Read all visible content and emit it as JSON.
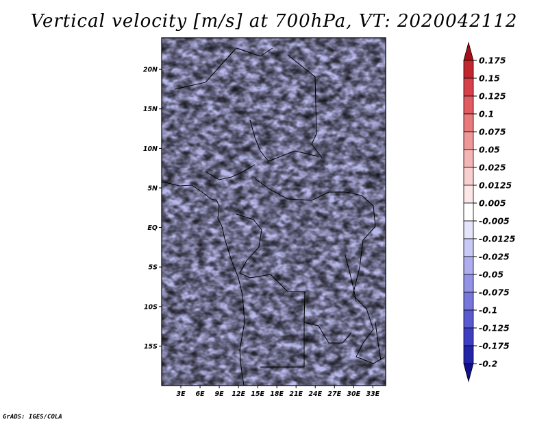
{
  "title": "Vertical velocity [m/s] at 700hPa, VT: 2020042112",
  "credit": "GrADS: IGES/COLA",
  "map": {
    "variable": "Vertical velocity",
    "units": "m/s",
    "level": "700hPa",
    "valid_time": "2020042112",
    "lon_range": [
      0,
      35
    ],
    "lat_range": [
      -20,
      24
    ],
    "lat_ticks": [
      {
        "value": 20,
        "label": "20N"
      },
      {
        "value": 15,
        "label": "15N"
      },
      {
        "value": 10,
        "label": "10N"
      },
      {
        "value": 5,
        "label": "5N"
      },
      {
        "value": 0,
        "label": "EQ"
      },
      {
        "value": -5,
        "label": "5S"
      },
      {
        "value": -10,
        "label": "10S"
      },
      {
        "value": -15,
        "label": "15S"
      }
    ],
    "lon_ticks": [
      {
        "value": 3,
        "label": "3E"
      },
      {
        "value": 6,
        "label": "6E"
      },
      {
        "value": 9,
        "label": "9E"
      },
      {
        "value": 12,
        "label": "12E"
      },
      {
        "value": 15,
        "label": "15E"
      },
      {
        "value": 18,
        "label": "18E"
      },
      {
        "value": 21,
        "label": "21E"
      },
      {
        "value": 24,
        "label": "24E"
      },
      {
        "value": 27,
        "label": "27E"
      },
      {
        "value": 30,
        "label": "30E"
      },
      {
        "value": 33,
        "label": "33E"
      }
    ]
  },
  "colorbar": {
    "labels": [
      "0.175",
      "0.15",
      "0.125",
      "0.1",
      "0.075",
      "0.05",
      "0.025",
      "0.0125",
      "0.005",
      "-0.005",
      "-0.0125",
      "-0.025",
      "-0.05",
      "-0.075",
      "-0.1",
      "-0.125",
      "-0.175",
      "-0.2"
    ],
    "colors": [
      "#a50f15",
      "#c1272d",
      "#d6404a",
      "#e25b60",
      "#e97a7c",
      "#ef9898",
      "#f4b5b5",
      "#f8d0d0",
      "#fbe7e7",
      "#ffffff",
      "#e4e4fb",
      "#c9c9f5",
      "#aeaeee",
      "#9393e6",
      "#7676dc",
      "#5a5ad0",
      "#3e3ec2",
      "#2323a8",
      "#120f8a"
    ]
  }
}
